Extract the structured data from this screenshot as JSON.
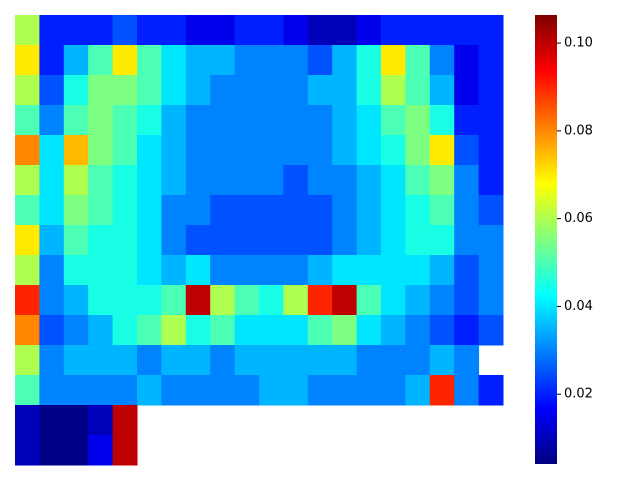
{
  "chart_data": {
    "type": "heatmap",
    "colormap": "jet",
    "zlim": [
      0.0041,
      0.1064
    ],
    "zticks": [
      0.02,
      0.04,
      0.06,
      0.08,
      {
        "value": 0.1,
        "label": "0.10"
      }
    ],
    "z": [
      [
        0.06,
        0.02,
        0.02,
        0.02,
        0.025,
        0.02,
        0.02,
        0.015,
        0.015,
        0.02,
        0.02,
        0.015,
        0.01,
        0.01,
        0.015,
        0.02,
        0.02,
        0.02,
        0.02,
        0.02
      ],
      [
        0.07,
        0.02,
        0.035,
        0.05,
        0.07,
        0.05,
        0.04,
        0.035,
        0.035,
        0.03,
        0.03,
        0.03,
        0.025,
        0.035,
        0.045,
        0.07,
        0.05,
        0.03,
        0.015,
        0.02
      ],
      [
        0.06,
        0.025,
        0.045,
        0.055,
        0.055,
        0.05,
        0.04,
        0.035,
        0.03,
        0.03,
        0.03,
        0.03,
        0.035,
        0.035,
        0.045,
        0.06,
        0.05,
        0.035,
        0.015,
        0.02
      ],
      [
        0.05,
        0.03,
        0.05,
        0.055,
        0.05,
        0.045,
        0.035,
        0.03,
        0.03,
        0.03,
        0.03,
        0.03,
        0.03,
        0.035,
        0.04,
        0.05,
        0.055,
        0.045,
        0.02,
        0.02
      ],
      [
        0.08,
        0.04,
        0.075,
        0.055,
        0.05,
        0.04,
        0.035,
        0.03,
        0.03,
        0.03,
        0.03,
        0.03,
        0.03,
        0.035,
        0.04,
        0.045,
        0.055,
        0.07,
        0.025,
        0.02
      ],
      [
        0.06,
        0.04,
        0.06,
        0.05,
        0.045,
        0.04,
        0.035,
        0.03,
        0.03,
        0.03,
        0.03,
        0.025,
        0.03,
        0.03,
        0.035,
        0.04,
        0.05,
        0.055,
        0.03,
        0.02
      ],
      [
        0.05,
        0.04,
        0.055,
        0.05,
        0.045,
        0.04,
        0.03,
        0.03,
        0.025,
        0.025,
        0.025,
        0.025,
        0.025,
        0.03,
        0.035,
        0.04,
        0.045,
        0.05,
        0.03,
        0.025
      ],
      [
        0.07,
        0.035,
        0.05,
        0.045,
        0.045,
        0.04,
        0.03,
        0.025,
        0.025,
        0.025,
        0.025,
        0.025,
        0.025,
        0.03,
        0.035,
        0.04,
        0.045,
        0.045,
        0.03,
        0.03
      ],
      [
        0.06,
        0.03,
        0.045,
        0.045,
        0.045,
        0.04,
        0.035,
        0.04,
        0.03,
        0.03,
        0.03,
        0.03,
        0.035,
        0.04,
        0.04,
        0.04,
        0.04,
        0.035,
        0.025,
        0.03
      ],
      [
        0.09,
        0.03,
        0.035,
        0.045,
        0.045,
        0.045,
        0.05,
        0.1,
        0.06,
        0.05,
        0.045,
        0.06,
        0.09,
        0.1,
        0.05,
        0.04,
        0.035,
        0.03,
        0.025,
        0.03
      ],
      [
        0.08,
        0.025,
        0.03,
        0.035,
        0.045,
        0.05,
        0.06,
        0.045,
        0.05,
        0.04,
        0.04,
        0.04,
        0.05,
        0.055,
        0.04,
        0.035,
        0.03,
        0.025,
        0.02,
        0.025
      ],
      [
        0.06,
        0.03,
        0.035,
        0.035,
        0.035,
        0.03,
        0.035,
        0.035,
        0.03,
        0.035,
        0.035,
        0.035,
        0.035,
        0.035,
        0.03,
        0.03,
        0.03,
        0.035,
        0.03,
        null
      ],
      [
        0.05,
        0.03,
        0.03,
        0.03,
        0.03,
        0.035,
        0.03,
        0.03,
        0.03,
        0.03,
        0.035,
        0.035,
        0.03,
        0.03,
        0.03,
        0.03,
        0.035,
        0.09,
        0.03,
        0.02
      ],
      [
        0.01,
        0.005,
        0.005,
        0.01,
        0.1,
        null,
        null,
        null,
        null,
        null,
        null,
        null,
        null,
        null,
        null,
        null,
        null,
        null,
        null,
        null
      ],
      [
        0.01,
        0.005,
        0.005,
        0.015,
        0.1,
        null,
        null,
        null,
        null,
        null,
        null,
        null,
        null,
        null,
        null,
        null,
        null,
        null,
        null,
        null
      ]
    ]
  }
}
